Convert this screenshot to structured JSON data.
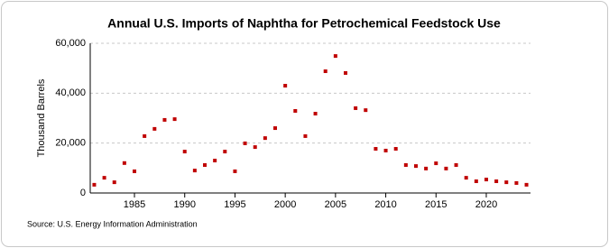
{
  "chart_data": {
    "type": "scatter",
    "title": "Annual U.S. Imports of Naphtha for Petrochemical Feedstock Use",
    "y_label": "Thousand Barrels",
    "source": "Source: U.S. Energy Information Administration",
    "x": [
      1981,
      1982,
      1983,
      1984,
      1985,
      1986,
      1987,
      1988,
      1989,
      1990,
      1991,
      1992,
      1993,
      1994,
      1995,
      1996,
      1997,
      1998,
      1999,
      2000,
      2001,
      2002,
      2003,
      2004,
      2005,
      2006,
      2007,
      2008,
      2009,
      2010,
      2011,
      2012,
      2013,
      2014,
      2015,
      2016,
      2017,
      2018,
      2019,
      2020,
      2021,
      2022,
      2023,
      2024
    ],
    "values": [
      3300,
      6100,
      4300,
      12000,
      8700,
      22800,
      25700,
      29300,
      29600,
      16600,
      9000,
      11200,
      13000,
      16600,
      8700,
      19900,
      18400,
      22000,
      26000,
      43000,
      32900,
      22800,
      31800,
      48800,
      54900,
      48100,
      34000,
      33200,
      17700,
      17000,
      17700,
      11200,
      10800,
      9800,
      11900,
      9800,
      11200,
      6100,
      4700,
      5400,
      4700,
      4300,
      4000,
      3300
    ],
    "color": "#c00000",
    "xlim": [
      1980.6,
      2024.4
    ],
    "xticks": [
      1985,
      1990,
      1995,
      2000,
      2005,
      2010,
      2015,
      2020
    ],
    "ylim": [
      0,
      60000
    ],
    "yticks": [
      0,
      {
        "value": 20000,
        "label": "20,000"
      },
      {
        "value": 40000,
        "label": "40,000"
      },
      {
        "value": 60000,
        "label": "60,000"
      }
    ],
    "grid": true
  }
}
